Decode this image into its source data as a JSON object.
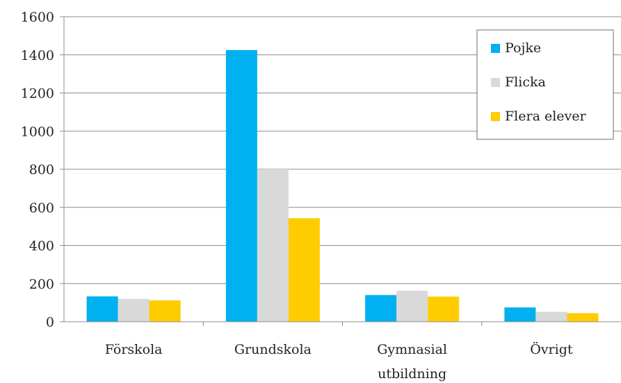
{
  "chart_data": {
    "type": "bar",
    "title": "",
    "xlabel": "",
    "ylabel": "",
    "categories": [
      [
        "Förskola"
      ],
      [
        "Grundskola"
      ],
      [
        "Gymnasial",
        "utbildning"
      ],
      [
        "Övrigt"
      ]
    ],
    "series": [
      {
        "name": "Pojke",
        "color": "#00B0F0",
        "values": [
          133,
          1425,
          140,
          75
        ]
      },
      {
        "name": "Flicka",
        "color": "#D9D9D9",
        "values": [
          120,
          800,
          163,
          52
        ]
      },
      {
        "name": "Flera elever",
        "color": "#FFCC00",
        "values": [
          112,
          543,
          132,
          45
        ]
      }
    ],
    "ylim": [
      0,
      1600
    ],
    "yticks": [
      0,
      200,
      400,
      600,
      800,
      1000,
      1200,
      1400,
      1600
    ],
    "grid": true,
    "legend": "top-right"
  }
}
